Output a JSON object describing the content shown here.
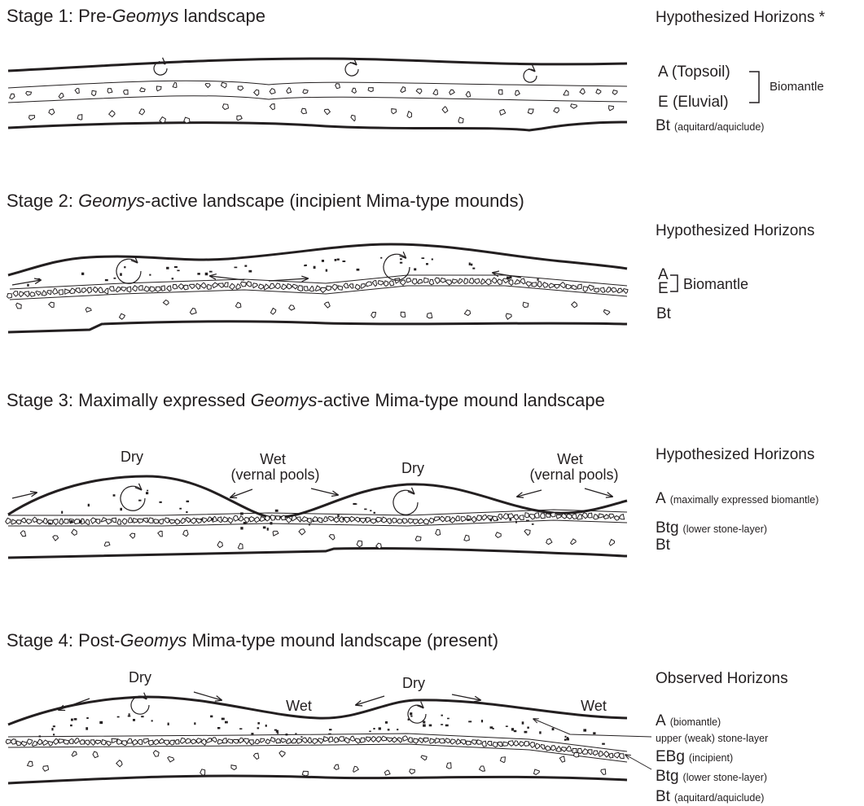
{
  "stages": [
    {
      "title": [
        "Stage 1: Pre-",
        "Geomys",
        " landscape"
      ],
      "horizons_heading": "Hypothesized Horizons *",
      "horizons": [
        {
          "name": "A (Topsoil)"
        },
        {
          "name": "E (Eluvial)"
        },
        {
          "name": "Bt",
          "note": "(aquitard/aquiclude)"
        }
      ],
      "group_label": "Biomantle"
    },
    {
      "title": [
        "Stage 2: ",
        "Geomys",
        "-active landscape (incipient Mima-type mounds)"
      ],
      "horizons_heading": "Hypothesized Horizons",
      "horizons": [
        {
          "name": "A"
        },
        {
          "name": "E"
        },
        {
          "name": "Bt"
        }
      ],
      "group_label": "Biomantle"
    },
    {
      "title": [
        "Stage 3: Maximally expressed ",
        "Geomys",
        "-active Mima-type mound landscape"
      ],
      "horizons_heading": "Hypothesized Horizons",
      "horizons": [
        {
          "name": "A",
          "note": "(maximally expressed biomantle)"
        },
        {
          "name": "Btg",
          "note": "(lower stone-layer)"
        },
        {
          "name": "Bt"
        }
      ],
      "labels": [
        "Dry",
        "Wet",
        "(vernal pools)",
        "Dry",
        "Wet",
        "(vernal pools)"
      ]
    },
    {
      "title": [
        "Stage 4: Post-",
        "Geomys",
        " Mima-type mound landscape (present)"
      ],
      "horizons_heading": "Observed Horizons",
      "horizons": [
        {
          "name": "A",
          "note": "(biomantle)"
        },
        {
          "name": "upper (weak) stone-layer"
        },
        {
          "name": "EBg",
          "note": "(incipient)"
        },
        {
          "name": "Btg",
          "note": "(lower stone-layer)"
        },
        {
          "name": "Bt",
          "note": "(aquitard/aquiclude)"
        }
      ],
      "labels": [
        "Dry",
        "Dry",
        "Wet",
        "Wet"
      ]
    }
  ]
}
